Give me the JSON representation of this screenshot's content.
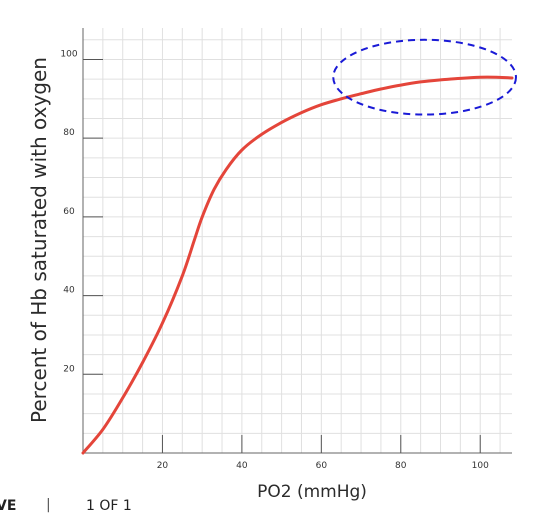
{
  "chart_data": {
    "type": "line",
    "ylabel": "Percent of Hb saturated with oxygen",
    "xlabel": "PO2 (mmHg)",
    "xlim": [
      0,
      108
    ],
    "ylim": [
      0,
      108
    ],
    "x_ticks": [
      20,
      40,
      60,
      80,
      100
    ],
    "y_ticks": [
      20,
      40,
      60,
      80,
      100
    ],
    "grid": true,
    "series": [
      {
        "x": [
          0,
          5,
          10,
          15,
          20,
          25,
          28,
          30,
          33,
          36,
          40,
          45,
          50,
          55,
          60,
          65,
          70,
          75,
          80,
          85,
          90,
          95,
          100,
          104,
          108
        ],
        "y": [
          0,
          6,
          14,
          23,
          33,
          45,
          54,
          60,
          67,
          72,
          77,
          81,
          84,
          86.5,
          88.5,
          90,
          91.3,
          92.5,
          93.5,
          94.3,
          94.8,
          95.2,
          95.5,
          95.5,
          95.3
        ],
        "color": "#e4453a"
      }
    ],
    "annotations": [
      {
        "shape": "dashed-ellipse",
        "color": "#1a1ad6",
        "center_x": 86,
        "center_y": 95.5,
        "radius_x": 23,
        "radius_y": 9.5
      }
    ]
  },
  "footer": {
    "left": "VE",
    "separator": "|",
    "right": "1 OF 1"
  }
}
